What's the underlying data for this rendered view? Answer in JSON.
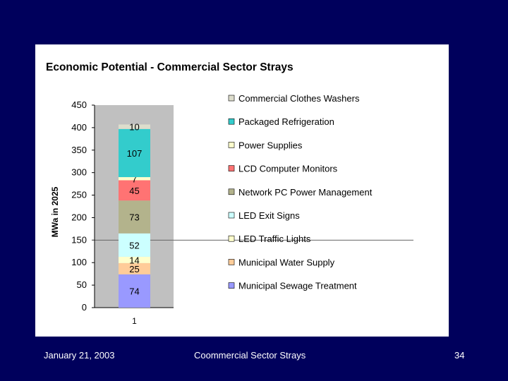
{
  "chart_data": {
    "type": "bar",
    "stacked": true,
    "title": "Economic Potential - Commercial Sector Strays",
    "ylabel": "MWa in 2025",
    "xlabel": "",
    "categories": [
      "1"
    ],
    "ylim": [
      0,
      450
    ],
    "yticks": [
      0,
      50,
      100,
      150,
      200,
      250,
      300,
      350,
      400,
      450
    ],
    "legend_position": "right",
    "plot_background": "#c0c0c0",
    "series": [
      {
        "name": "Municipal Sewage Treatment",
        "values": [
          74
        ],
        "color": "#9999ff"
      },
      {
        "name": "Municipal Water Supply",
        "values": [
          25
        ],
        "color": "#ffcc99"
      },
      {
        "name": "LED Traffic Lights",
        "values": [
          14
        ],
        "color": "#ffffcc"
      },
      {
        "name": "LED Exit Signs",
        "values": [
          52
        ],
        "color": "#ccffff"
      },
      {
        "name": "Network PC Power Management",
        "values": [
          73
        ],
        "color": "#b3b38c"
      },
      {
        "name": "LCD Computer Monitors",
        "values": [
          45
        ],
        "color": "#ff7373"
      },
      {
        "name": "Power Supplies",
        "values": [
          7
        ],
        "color": "#ffffcc"
      },
      {
        "name": "Packaged Refrigeration",
        "values": [
          107
        ],
        "color": "#33cccc"
      },
      {
        "name": "Commercial Clothes Washers",
        "values": [
          10
        ],
        "color": "#ddddcc"
      }
    ]
  },
  "footer": {
    "date": "January 21, 2003",
    "center": "Coommercial Sector Strays",
    "page": "34"
  }
}
